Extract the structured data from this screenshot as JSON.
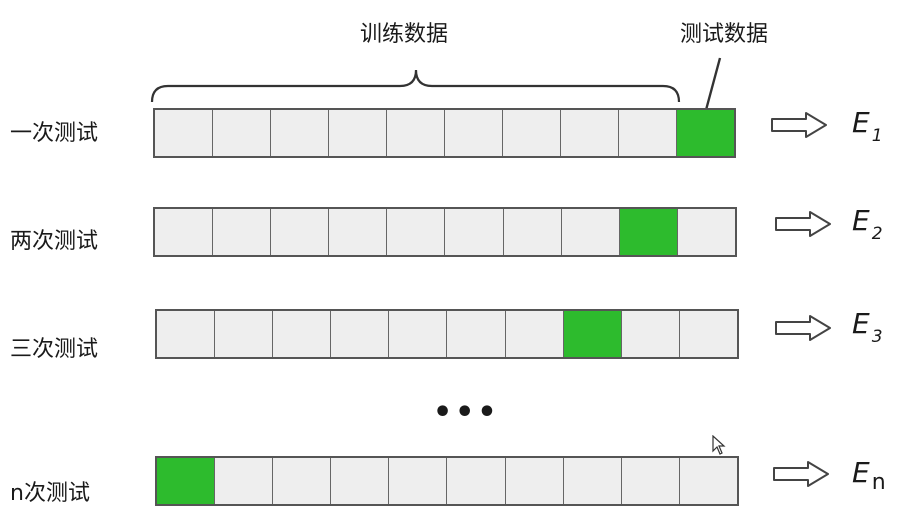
{
  "diagram": {
    "training_label": "训练数据",
    "test_label": "测试数据",
    "ellipsis": "…",
    "cells_per_row": 10,
    "highlight_color": "#2dbb2d",
    "cell_color": "#eeeeee",
    "rows": [
      {
        "label": "一次测试",
        "test_index": 9,
        "result_letter": "E",
        "result_sub": "1"
      },
      {
        "label": "两次测试",
        "test_index": 8,
        "result_letter": "E",
        "result_sub": "2"
      },
      {
        "label": "三次测试",
        "test_index": 7,
        "result_letter": "E",
        "result_sub": "3"
      },
      {
        "label": "n次测试",
        "test_index": 0,
        "result_letter": "E",
        "result_sub": "n"
      }
    ]
  }
}
